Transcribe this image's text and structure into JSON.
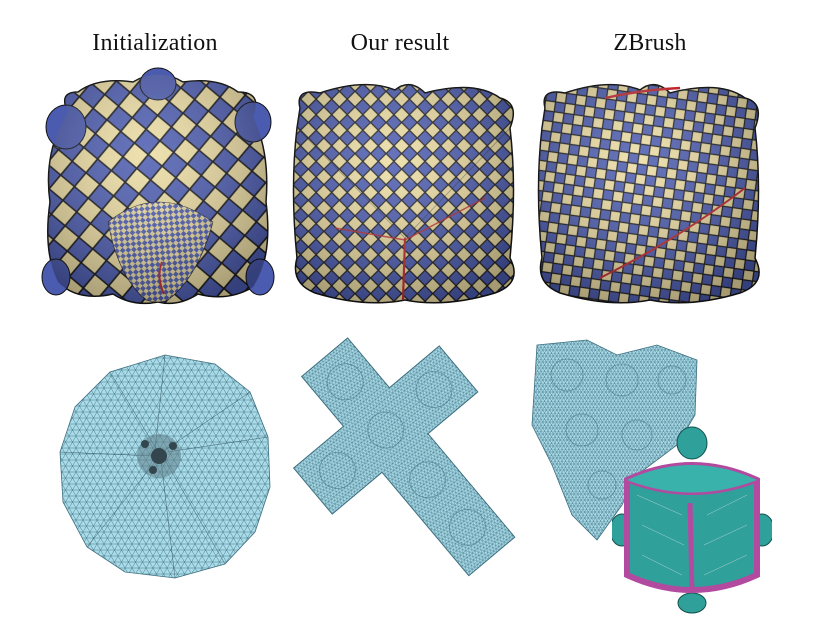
{
  "figure": {
    "columns": [
      {
        "title": "Initialization"
      },
      {
        "title": "Our result"
      },
      {
        "title": "ZBrush"
      }
    ]
  },
  "colors": {
    "checker_blue": "#4b5bb0",
    "checker_cream": "#ecdca2",
    "seam_red": "#c0262c",
    "mesh_fill": "#a9dbe8",
    "mesh_line": "#3d6f80",
    "inset_teal": "#2fa09a",
    "inset_magenta": "#b24aa0"
  }
}
